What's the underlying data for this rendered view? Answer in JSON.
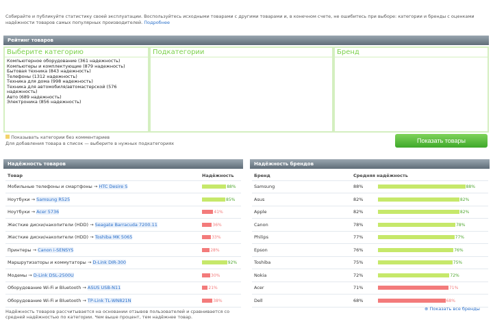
{
  "intro": "Собирайте и публикуйте статистику своей эксплуатации. Воспользуйтесь исходными товарами с другими товарами и, в конечном счете, не ошибитесь при выборе: категории и бренды с оценками надёжности товаров самых популярных производителей.",
  "intro_link": "Подробнее",
  "selector": {
    "header": "Рейтинг товаров",
    "col1_title": "Выберите категорию",
    "col2_title": "Подкатегории",
    "col3_title": "Бренд",
    "categories": [
      "Компьютерное оборудование (361 надежность)",
      "Компьютеры и комплектующие (879 надежность)",
      "Бытовая техника (843 надежность)",
      "Телефоны (1312 надежность)",
      "Техника для дома (998 надежность)",
      "Техника для автомобиля/автомастерской (576 надежность)",
      "Авто (689 надежность)",
      "Электроника (856 надежность)"
    ],
    "note1": "Показывать категории без комментариев",
    "note2": "Для добавления товара в список — выберите в нужных подкатегориях",
    "show_button": "Показать товары"
  },
  "left": {
    "header": "Надёжность товаров",
    "col_product": "Товар",
    "col_reliability": "Надёжность",
    "rows": [
      {
        "name": "Мобильные телефоны и смартфоны →",
        "link": "HTC Desire S",
        "pct": "88%",
        "v": 88,
        "good": true
      },
      {
        "name": "Ноутбуки →",
        "link": "Samsung R525",
        "pct": "85%",
        "v": 85,
        "good": true
      },
      {
        "name": "Ноутбуки →",
        "link": "Acer 5736",
        "pct": "41%",
        "v": 41,
        "good": false
      },
      {
        "name": "Жесткие диски/накопители (HDD) →",
        "link": "Seagate Barracuda 7200.11",
        "pct": "36%",
        "v": 36,
        "good": false
      },
      {
        "name": "Жесткие диски/накопители (HDD) →",
        "link": "Toshiba MK 5065",
        "pct": "33%",
        "v": 33,
        "good": false
      },
      {
        "name": "Принтеры →",
        "link": "Canon i-SENSYS",
        "pct": "28%",
        "v": 28,
        "good": false
      },
      {
        "name": "Маршрутизаторы и коммутаторы →",
        "link": "D-Link DIR-300",
        "pct": "92%",
        "v": 92,
        "good": true
      },
      {
        "name": "Модемы →",
        "link": "D-Link DSL-2500U",
        "pct": "30%",
        "v": 30,
        "good": false
      },
      {
        "name": "Оборудование Wi-Fi и Bluetooth →",
        "link": "ASUS USB-N11",
        "pct": "21%",
        "v": 21,
        "good": false
      },
      {
        "name": "Оборудование Wi-Fi и Bluetooth →",
        "link": "TP-Link TL-WN821N",
        "pct": "38%",
        "v": 38,
        "good": false
      }
    ],
    "footnote": "Надёжность товаров рассчитывается на основании отзывов пользователей и сравнивается со средней надёжностью по категории. Чем выше процент, тем надёжнее товар."
  },
  "right": {
    "header": "Надёжность брендов",
    "col_brand": "Бренд",
    "col_reliability": "Средняя надёжность",
    "rows": [
      {
        "brand": "Samsung",
        "pct": "88%",
        "v": 88,
        "good": true
      },
      {
        "brand": "Asus",
        "pct": "82%",
        "v": 82,
        "good": true
      },
      {
        "brand": "Apple",
        "pct": "82%",
        "v": 82,
        "good": true
      },
      {
        "brand": "Canon",
        "pct": "78%",
        "v": 78,
        "good": true
      },
      {
        "brand": "Philips",
        "pct": "77%",
        "v": 77,
        "good": true
      },
      {
        "brand": "Epson",
        "pct": "76%",
        "v": 76,
        "good": true
      },
      {
        "brand": "Toshiba",
        "pct": "75%",
        "v": 75,
        "good": true
      },
      {
        "brand": "Nokia",
        "pct": "72%",
        "v": 72,
        "good": true
      },
      {
        "brand": "Acer",
        "pct": "71%",
        "v": 71,
        "good": false
      },
      {
        "brand": "Dell",
        "pct": "68%",
        "v": 68,
        "good": false
      }
    ],
    "show_all": "Показать все бренды"
  },
  "colors": {
    "good": "#c6e86a",
    "good_dark": "#4ea62c",
    "bad": "#f37b7b",
    "header": "#6b7883"
  }
}
